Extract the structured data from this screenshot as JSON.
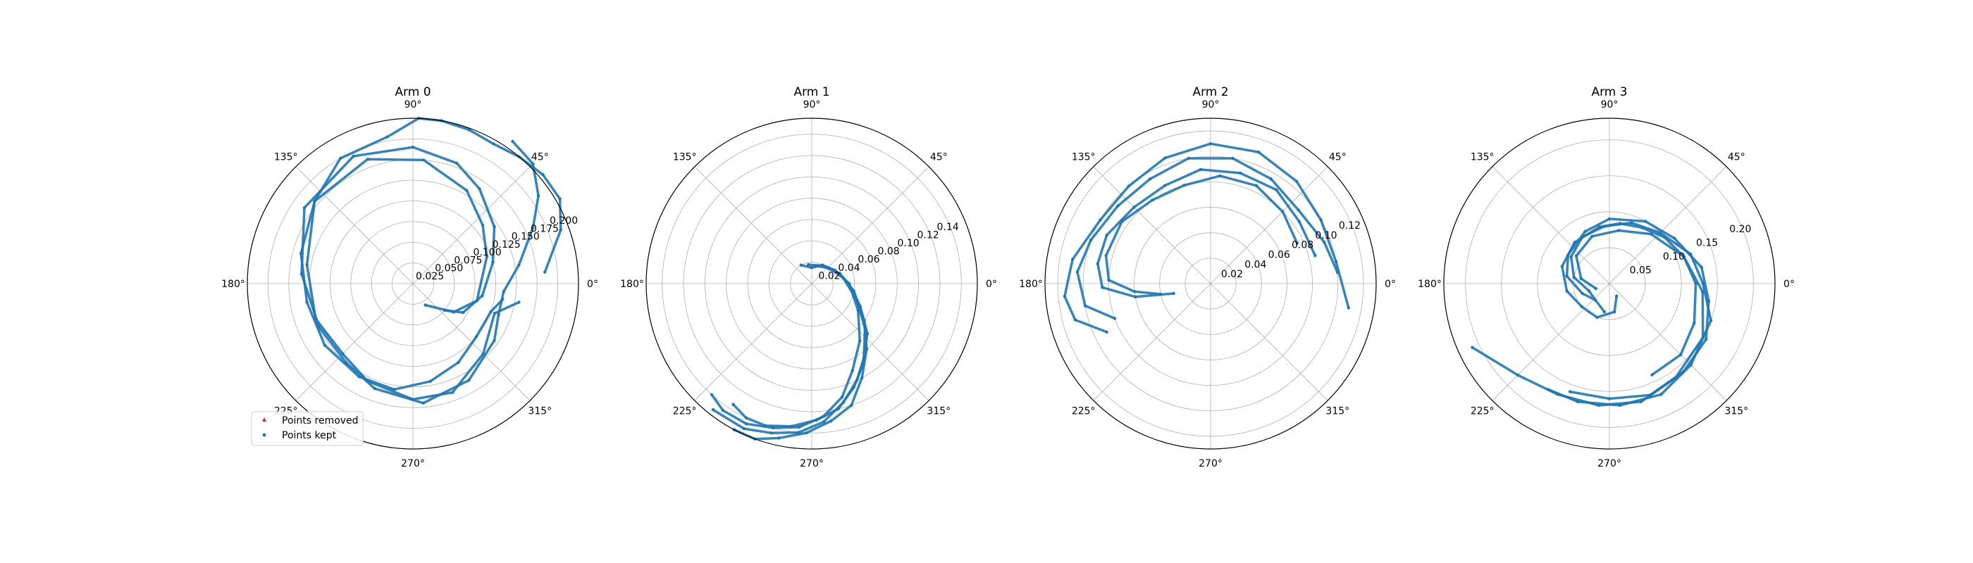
{
  "colors": {
    "kept": "#1f77b4",
    "removed": "#d62728",
    "grid": "#b0b0b0",
    "frame": "#000000"
  },
  "legend": {
    "location": "lower-left of first subplot",
    "items": [
      {
        "label": "Points removed",
        "color": "#d62728",
        "marker": "triangle"
      },
      {
        "label": "Points kept",
        "color": "#1f77b4",
        "marker": "circle"
      }
    ]
  },
  "chart_data": [
    {
      "type": "scatter",
      "projection": "polar",
      "title": "Arm 0",
      "theta_ticks": [
        "0°",
        "45°",
        "90°",
        "135°",
        "180°",
        "225°",
        "270°",
        "315°"
      ],
      "r_ticks": [
        "0.025",
        "0.050",
        "0.075",
        "0.100",
        "0.125",
        "0.150",
        "0.175",
        "0.200"
      ],
      "r_tick_values": [
        0.025,
        0.05,
        0.075,
        0.1,
        0.125,
        0.15,
        0.175,
        0.2
      ],
      "rlim": [
        0,
        0.2
      ],
      "grid": true,
      "series": [
        {
          "name": "Points kept",
          "theta_deg": [
            300,
            325,
            345,
            20,
            40,
            60,
            85,
            110,
            140,
            170,
            200,
            225,
            245,
            270,
            290,
            315,
            340,
            350
          ],
          "r": [
            0.03,
            0.06,
            0.08,
            0.095,
            0.11,
            0.13,
            0.15,
            0.16,
            0.155,
            0.13,
            0.125,
            0.12,
            0.13,
            0.14,
            0.14,
            0.12,
            0.105,
            0.13
          ]
        },
        {
          "name": "Points kept",
          "theta_deg": [
            320,
            330,
            350,
            15,
            35,
            55,
            70,
            90,
            115,
            145,
            175,
            205,
            230,
            250,
            275,
            300,
            325,
            340,
            355,
            10,
            25,
            35,
            45,
            55
          ],
          "r": [
            0.05,
            0.07,
            0.085,
            0.1,
            0.12,
            0.14,
            0.155,
            0.165,
            0.17,
            0.16,
            0.135,
            0.125,
            0.125,
            0.135,
            0.145,
            0.135,
            0.12,
            0.11,
            0.11,
            0.13,
            0.16,
            0.185,
            0.205,
            0.21
          ]
        },
        {
          "name": "Points kept",
          "theta_deg": [
            5,
            20,
            30,
            40,
            50,
            60,
            70,
            80,
            88,
            100,
            120,
            140,
            165,
            190,
            215,
            240,
            260,
            280,
            300,
            320,
            340,
            350
          ],
          "r": [
            0.16,
            0.19,
            0.205,
            0.205,
            0.2,
            0.195,
            0.198,
            0.2,
            0.2,
            0.18,
            0.175,
            0.155,
            0.14,
            0.13,
            0.13,
            0.13,
            0.13,
            0.12,
            0.11,
            0.1,
            0.1,
            0.11
          ]
        }
      ]
    },
    {
      "type": "scatter",
      "projection": "polar",
      "title": "Arm 1",
      "theta_ticks": [
        "0°",
        "45°",
        "90°",
        "135°",
        "180°",
        "225°",
        "270°",
        "315°"
      ],
      "r_ticks": [
        "0.02",
        "0.04",
        "0.06",
        "0.08",
        "0.10",
        "0.12",
        "0.14"
      ],
      "r_tick_values": [
        0.02,
        0.04,
        0.06,
        0.08,
        0.1,
        0.12,
        0.14
      ],
      "rlim": [
        0,
        0.155
      ],
      "grid": true,
      "series": [
        {
          "name": "Points kept",
          "theta_deg": [
            120,
            90,
            60,
            30,
            0,
            330,
            310,
            295,
            285,
            275,
            265,
            255,
            245,
            235,
            228
          ],
          "r": [
            0.02,
            0.015,
            0.02,
            0.025,
            0.035,
            0.05,
            0.07,
            0.09,
            0.11,
            0.125,
            0.135,
            0.14,
            0.145,
            0.145,
            0.14
          ]
        },
        {
          "name": "Points kept",
          "theta_deg": [
            100,
            70,
            40,
            10,
            340,
            320,
            305,
            295,
            285,
            275,
            265,
            255,
            245,
            232
          ],
          "r": [
            0.018,
            0.018,
            0.022,
            0.03,
            0.045,
            0.065,
            0.085,
            0.1,
            0.115,
            0.13,
            0.14,
            0.145,
            0.15,
            0.15
          ]
        },
        {
          "name": "Points kept",
          "theta_deg": [
            80,
            50,
            20,
            350,
            325,
            310,
            298,
            288,
            278,
            268,
            258,
            250,
            242
          ],
          "r": [
            0.017,
            0.02,
            0.028,
            0.04,
            0.06,
            0.08,
            0.1,
            0.12,
            0.13,
            0.14,
            0.148,
            0.155,
            0.155
          ]
        },
        {
          "name": "Points kept",
          "theta_deg": [
            60,
            30,
            0,
            335,
            318,
            302,
            292,
            282,
            272,
            262,
            252,
            244,
            237
          ],
          "r": [
            0.02,
            0.025,
            0.035,
            0.05,
            0.07,
            0.09,
            0.105,
            0.12,
            0.128,
            0.135,
            0.14,
            0.14,
            0.135
          ]
        }
      ]
    },
    {
      "type": "scatter",
      "projection": "polar",
      "title": "Arm 2",
      "theta_ticks": [
        "0°",
        "45°",
        "90°",
        "135°",
        "180°",
        "225°",
        "270°",
        "315°"
      ],
      "r_ticks": [
        "0.02",
        "0.04",
        "0.06",
        "0.08",
        "0.10",
        "0.12"
      ],
      "r_tick_values": [
        0.02,
        0.04,
        0.06,
        0.08,
        0.1,
        0.12
      ],
      "rlim": [
        0,
        0.13
      ],
      "grid": true,
      "series": [
        {
          "name": "Points kept",
          "theta_deg": [
            350,
            10,
            30,
            50,
            70,
            90,
            110,
            130,
            150,
            170,
            185,
            195,
            205
          ],
          "r": [
            0.11,
            0.1,
            0.1,
            0.105,
            0.11,
            0.11,
            0.105,
            0.1,
            0.1,
            0.11,
            0.115,
            0.11,
            0.09
          ]
        },
        {
          "name": "Points kept",
          "theta_deg": [
            5,
            20,
            40,
            60,
            80,
            100,
            120,
            140,
            160,
            175,
            190,
            200
          ],
          "r": [
            0.1,
            0.095,
            0.09,
            0.095,
            0.1,
            0.1,
            0.095,
            0.095,
            0.1,
            0.105,
            0.1,
            0.08
          ]
        },
        {
          "name": "Points kept",
          "theta_deg": [
            15,
            35,
            55,
            75,
            95,
            115,
            135,
            155,
            170,
            182,
            190,
            195
          ],
          "r": [
            0.085,
            0.085,
            0.09,
            0.09,
            0.09,
            0.085,
            0.085,
            0.09,
            0.09,
            0.085,
            0.06,
            0.03
          ]
        },
        {
          "name": "Points kept",
          "theta_deg": [
            25,
            45,
            65,
            85,
            105,
            125,
            145,
            165,
            178,
            186,
            192
          ],
          "r": [
            0.075,
            0.08,
            0.085,
            0.085,
            0.08,
            0.08,
            0.085,
            0.085,
            0.08,
            0.06,
            0.04
          ]
        }
      ]
    },
    {
      "type": "scatter",
      "projection": "polar",
      "title": "Arm 3",
      "theta_ticks": [
        "0°",
        "45°",
        "90°",
        "135°",
        "180°",
        "225°",
        "270°",
        "315°"
      ],
      "r_ticks": [
        "0.05",
        "0.10",
        "0.15",
        "0.20"
      ],
      "r_tick_values": [
        0.05,
        0.1,
        0.15,
        0.2
      ],
      "rlim": [
        0,
        0.23
      ],
      "grid": true,
      "series": [
        {
          "name": "Points kept",
          "theta_deg": [
            200,
            170,
            140,
            110,
            80,
            50,
            20,
            355,
            330,
            305,
            285,
            265,
            245,
            225,
            205
          ],
          "r": [
            0.02,
            0.04,
            0.06,
            0.07,
            0.075,
            0.09,
            0.11,
            0.13,
            0.15,
            0.16,
            0.17,
            0.17,
            0.17,
            0.18,
            0.21
          ]
        },
        {
          "name": "Points kept",
          "theta_deg": [
            230,
            200,
            170,
            145,
            120,
            95,
            70,
            45,
            20,
            0,
            340,
            315,
            295,
            275,
            255,
            240
          ],
          "r": [
            0.03,
            0.03,
            0.05,
            0.065,
            0.075,
            0.08,
            0.09,
            0.1,
            0.12,
            0.13,
            0.15,
            0.16,
            0.17,
            0.17,
            0.17,
            0.17
          ]
        },
        {
          "name": "Points kept",
          "theta_deg": [
            260,
            230,
            200,
            170,
            145,
            115,
            90,
            60,
            35,
            10,
            350,
            330,
            310,
            290,
            270,
            250
          ],
          "r": [
            0.04,
            0.03,
            0.04,
            0.06,
            0.07,
            0.08,
            0.09,
            0.1,
            0.11,
            0.13,
            0.14,
            0.155,
            0.16,
            0.165,
            0.16,
            0.16
          ]
        },
        {
          "name": "Points kept",
          "theta_deg": [
            300,
            280,
            250,
            220,
            190,
            160,
            130,
            100,
            80,
            60,
            40,
            20,
            0,
            335,
            315,
            295
          ],
          "r": [
            0.02,
            0.04,
            0.05,
            0.05,
            0.06,
            0.07,
            0.075,
            0.08,
            0.085,
            0.09,
            0.1,
            0.11,
            0.12,
            0.13,
            0.14,
            0.14
          ]
        }
      ]
    }
  ]
}
